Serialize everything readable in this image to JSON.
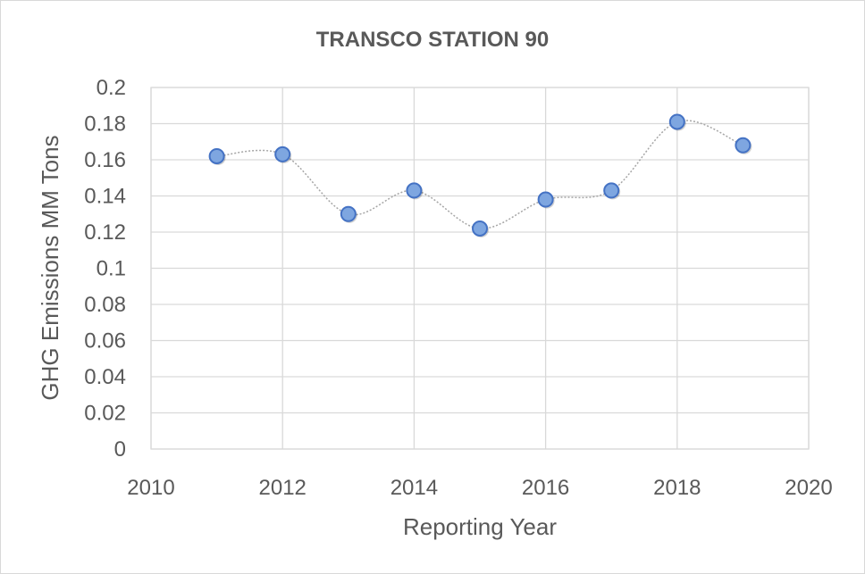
{
  "chart_data": {
    "type": "scatter",
    "title": "TRANSCO STATION 90",
    "xlabel": "Reporting Year",
    "ylabel": "GHG Emissions MM Tons",
    "xlim": [
      2010,
      2020
    ],
    "ylim": [
      0,
      0.2
    ],
    "x_ticks": [
      2010,
      2012,
      2014,
      2016,
      2018,
      2020
    ],
    "y_ticks": [
      0,
      0.02,
      0.04,
      0.06,
      0.08,
      0.1,
      0.12,
      0.14,
      0.16,
      0.18,
      0.2
    ],
    "x_tick_labels": [
      "2010",
      "2012",
      "2014",
      "2016",
      "2018",
      "2020"
    ],
    "y_tick_labels": [
      "0",
      "0.02",
      "0.04",
      "0.06",
      "0.08",
      "0.1",
      "0.12",
      "0.14",
      "0.16",
      "0.18",
      "0.2"
    ],
    "grid": true,
    "legend": "none",
    "line_style": "smoothed dotted",
    "series": [
      {
        "x": [
          2011,
          2012,
          2013,
          2014,
          2015,
          2016,
          2017,
          2018,
          2019
        ],
        "y": [
          0.162,
          0.163,
          0.13,
          0.143,
          0.122,
          0.138,
          0.143,
          0.181,
          0.168
        ]
      }
    ],
    "colors": {
      "marker_fill": "#7ea6e0",
      "marker_stroke": "#4472c4",
      "line": "#a6a6a6",
      "grid": "#d9d9d9",
      "text": "#595959"
    }
  }
}
